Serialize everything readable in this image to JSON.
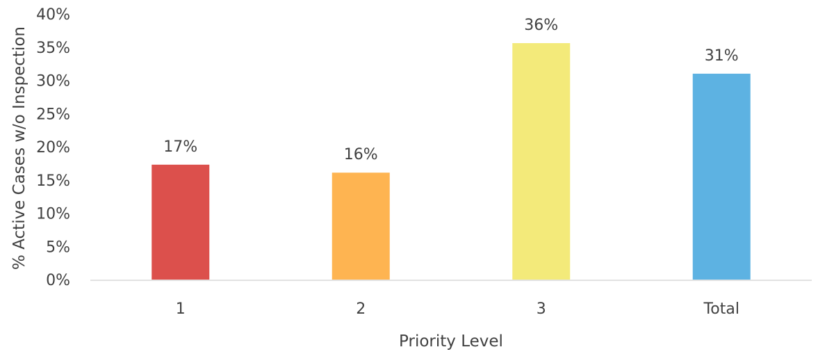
{
  "chart_data": {
    "type": "bar",
    "title": "",
    "xlabel": "Priority Level",
    "ylabel": "% Active Cases w/o Inspection",
    "categories": [
      "1",
      "2",
      "3",
      "Total"
    ],
    "values": [
      17.3,
      16.1,
      35.6,
      31.0
    ],
    "value_labels": [
      "17%",
      "16%",
      "36%",
      "31%"
    ],
    "colors": [
      "#DC504C",
      "#FEB451",
      "#F3EA7A",
      "#5DB2E2"
    ],
    "ylim": [
      0,
      40
    ],
    "yticks": [
      0,
      5,
      10,
      15,
      20,
      25,
      30,
      35,
      40
    ],
    "ytick_labels": [
      "0%",
      "5%",
      "10%",
      "15%",
      "20%",
      "25%",
      "30%",
      "35%",
      "40%"
    ],
    "grid": false,
    "legend": "none"
  }
}
